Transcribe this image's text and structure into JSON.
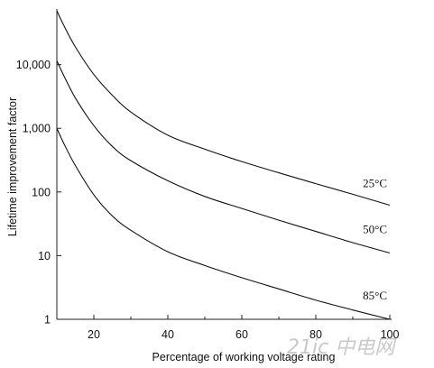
{
  "chart_data": {
    "type": "line",
    "title": "",
    "xlabel": "Percentage of working voltage rating",
    "ylabel": "Lifetime improvement factor",
    "x_scale": "linear",
    "y_scale": "log",
    "xlim": [
      10,
      100
    ],
    "ylim": [
      1,
      70000
    ],
    "x_ticks": [
      20,
      40,
      60,
      80,
      100
    ],
    "x_tick_labels": [
      "20",
      "40",
      "60",
      "80",
      "100"
    ],
    "y_ticks": [
      1,
      10,
      100,
      1000,
      10000
    ],
    "y_tick_labels": [
      "1",
      "10",
      "100",
      "1,000",
      "10,000"
    ],
    "grid": false,
    "legend": "none",
    "series": [
      {
        "name": "25°C",
        "x": [
          10,
          12,
          15,
          20,
          25,
          30,
          40,
          50,
          60,
          70,
          80,
          90,
          100
        ],
        "values": [
          70000,
          40000,
          19000,
          7000,
          3300,
          1800,
          780,
          470,
          300,
          200,
          135,
          92,
          62
        ]
      },
      {
        "name": "50°C",
        "x": [
          10,
          12,
          15,
          20,
          25,
          30,
          40,
          50,
          60,
          70,
          80,
          90,
          100
        ],
        "values": [
          11500,
          6500,
          3000,
          1100,
          520,
          310,
          150,
          85,
          55,
          36,
          24,
          16,
          11
        ]
      },
      {
        "name": "85°C",
        "x": [
          10,
          12,
          15,
          20,
          25,
          30,
          40,
          50,
          60,
          70,
          80,
          90,
          100
        ],
        "values": [
          1000,
          560,
          260,
          90,
          42,
          25,
          11.5,
          7,
          4.5,
          3,
          2,
          1.4,
          1
        ]
      }
    ]
  },
  "watermark": {
    "text": "21ic 中电网"
  }
}
